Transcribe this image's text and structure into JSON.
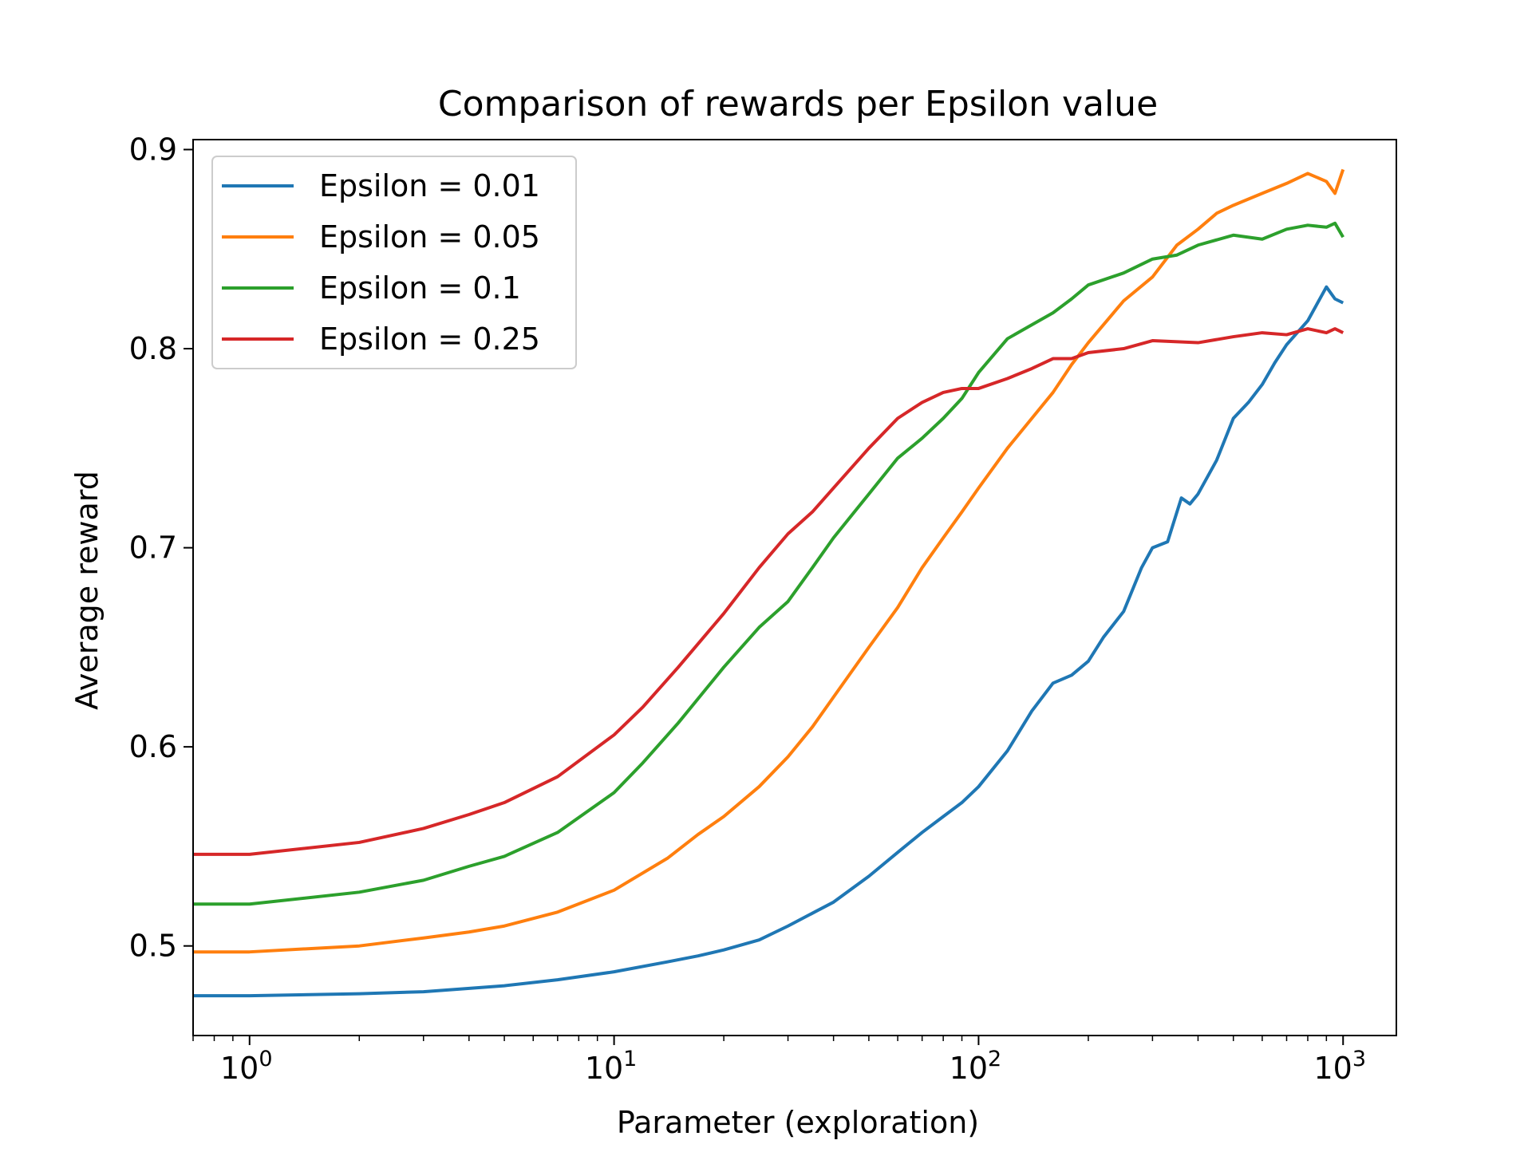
{
  "chart_data": {
    "type": "line",
    "title": "Comparison of rewards per Epsilon value",
    "xlabel": "Parameter (exploration)",
    "ylabel": "Average reward",
    "xscale": "log",
    "xlim": [
      0.7,
      1400
    ],
    "ylim": [
      0.455,
      0.905
    ],
    "xticks": [
      {
        "value": 1,
        "base": "10",
        "exp": "0"
      },
      {
        "value": 10,
        "base": "10",
        "exp": "1"
      },
      {
        "value": 100,
        "base": "10",
        "exp": "2"
      },
      {
        "value": 1000,
        "base": "10",
        "exp": "3"
      }
    ],
    "yticks": [
      {
        "value": 0.5,
        "label": "0.5"
      },
      {
        "value": 0.6,
        "label": "0.6"
      },
      {
        "value": 0.7,
        "label": "0.7"
      },
      {
        "value": 0.8,
        "label": "0.8"
      },
      {
        "value": 0.9,
        "label": "0.9"
      }
    ],
    "grid": false,
    "legend_position": "upper-left",
    "series": [
      {
        "name": "Epsilon = 0.01",
        "color": "#1f77b4",
        "points": [
          [
            0.7,
            0.475
          ],
          [
            1,
            0.475
          ],
          [
            2,
            0.476
          ],
          [
            3,
            0.477
          ],
          [
            5,
            0.48
          ],
          [
            7,
            0.483
          ],
          [
            10,
            0.487
          ],
          [
            14,
            0.492
          ],
          [
            17,
            0.495
          ],
          [
            20,
            0.498
          ],
          [
            25,
            0.503
          ],
          [
            30,
            0.51
          ],
          [
            40,
            0.522
          ],
          [
            50,
            0.535
          ],
          [
            60,
            0.547
          ],
          [
            70,
            0.557
          ],
          [
            80,
            0.565
          ],
          [
            90,
            0.572
          ],
          [
            100,
            0.58
          ],
          [
            120,
            0.598
          ],
          [
            140,
            0.618
          ],
          [
            160,
            0.632
          ],
          [
            180,
            0.636
          ],
          [
            200,
            0.643
          ],
          [
            220,
            0.655
          ],
          [
            250,
            0.668
          ],
          [
            280,
            0.69
          ],
          [
            300,
            0.7
          ],
          [
            330,
            0.703
          ],
          [
            360,
            0.725
          ],
          [
            380,
            0.722
          ],
          [
            400,
            0.727
          ],
          [
            450,
            0.744
          ],
          [
            500,
            0.765
          ],
          [
            550,
            0.773
          ],
          [
            600,
            0.782
          ],
          [
            650,
            0.793
          ],
          [
            700,
            0.802
          ],
          [
            800,
            0.814
          ],
          [
            900,
            0.831
          ],
          [
            950,
            0.825
          ],
          [
            1000,
            0.823
          ]
        ]
      },
      {
        "name": "Epsilon = 0.05",
        "color": "#ff7f0e",
        "points": [
          [
            0.7,
            0.497
          ],
          [
            1,
            0.497
          ],
          [
            2,
            0.5
          ],
          [
            3,
            0.504
          ],
          [
            4,
            0.507
          ],
          [
            5,
            0.51
          ],
          [
            7,
            0.517
          ],
          [
            10,
            0.528
          ],
          [
            14,
            0.544
          ],
          [
            17,
            0.556
          ],
          [
            20,
            0.565
          ],
          [
            25,
            0.58
          ],
          [
            30,
            0.595
          ],
          [
            35,
            0.61
          ],
          [
            40,
            0.625
          ],
          [
            50,
            0.65
          ],
          [
            60,
            0.67
          ],
          [
            70,
            0.69
          ],
          [
            80,
            0.705
          ],
          [
            90,
            0.718
          ],
          [
            100,
            0.73
          ],
          [
            120,
            0.75
          ],
          [
            140,
            0.765
          ],
          [
            160,
            0.778
          ],
          [
            180,
            0.792
          ],
          [
            200,
            0.803
          ],
          [
            250,
            0.824
          ],
          [
            300,
            0.836
          ],
          [
            350,
            0.852
          ],
          [
            400,
            0.86
          ],
          [
            450,
            0.868
          ],
          [
            500,
            0.872
          ],
          [
            600,
            0.878
          ],
          [
            700,
            0.883
          ],
          [
            800,
            0.888
          ],
          [
            900,
            0.884
          ],
          [
            950,
            0.878
          ],
          [
            1000,
            0.89
          ]
        ]
      },
      {
        "name": "Epsilon = 0.1",
        "color": "#2ca02c",
        "points": [
          [
            0.7,
            0.521
          ],
          [
            1,
            0.521
          ],
          [
            2,
            0.527
          ],
          [
            3,
            0.533
          ],
          [
            4,
            0.54
          ],
          [
            5,
            0.545
          ],
          [
            7,
            0.557
          ],
          [
            10,
            0.577
          ],
          [
            12,
            0.592
          ],
          [
            15,
            0.612
          ],
          [
            20,
            0.64
          ],
          [
            25,
            0.66
          ],
          [
            30,
            0.673
          ],
          [
            35,
            0.69
          ],
          [
            40,
            0.705
          ],
          [
            50,
            0.727
          ],
          [
            60,
            0.745
          ],
          [
            70,
            0.755
          ],
          [
            80,
            0.765
          ],
          [
            90,
            0.775
          ],
          [
            100,
            0.788
          ],
          [
            120,
            0.805
          ],
          [
            140,
            0.812
          ],
          [
            160,
            0.818
          ],
          [
            180,
            0.825
          ],
          [
            200,
            0.832
          ],
          [
            250,
            0.838
          ],
          [
            300,
            0.845
          ],
          [
            350,
            0.847
          ],
          [
            400,
            0.852
          ],
          [
            500,
            0.857
          ],
          [
            600,
            0.855
          ],
          [
            700,
            0.86
          ],
          [
            800,
            0.862
          ],
          [
            900,
            0.861
          ],
          [
            950,
            0.863
          ],
          [
            1000,
            0.856
          ]
        ]
      },
      {
        "name": "Epsilon = 0.25",
        "color": "#d62728",
        "points": [
          [
            0.7,
            0.546
          ],
          [
            1,
            0.546
          ],
          [
            2,
            0.552
          ],
          [
            3,
            0.559
          ],
          [
            4,
            0.566
          ],
          [
            5,
            0.572
          ],
          [
            7,
            0.585
          ],
          [
            10,
            0.606
          ],
          [
            12,
            0.62
          ],
          [
            15,
            0.64
          ],
          [
            20,
            0.667
          ],
          [
            25,
            0.69
          ],
          [
            30,
            0.707
          ],
          [
            35,
            0.718
          ],
          [
            40,
            0.73
          ],
          [
            50,
            0.75
          ],
          [
            60,
            0.765
          ],
          [
            70,
            0.773
          ],
          [
            80,
            0.778
          ],
          [
            90,
            0.78
          ],
          [
            100,
            0.78
          ],
          [
            120,
            0.785
          ],
          [
            140,
            0.79
          ],
          [
            160,
            0.795
          ],
          [
            180,
            0.795
          ],
          [
            200,
            0.798
          ],
          [
            250,
            0.8
          ],
          [
            300,
            0.804
          ],
          [
            400,
            0.803
          ],
          [
            500,
            0.806
          ],
          [
            600,
            0.808
          ],
          [
            700,
            0.807
          ],
          [
            800,
            0.81
          ],
          [
            900,
            0.808
          ],
          [
            950,
            0.81
          ],
          [
            1000,
            0.808
          ]
        ]
      }
    ]
  }
}
